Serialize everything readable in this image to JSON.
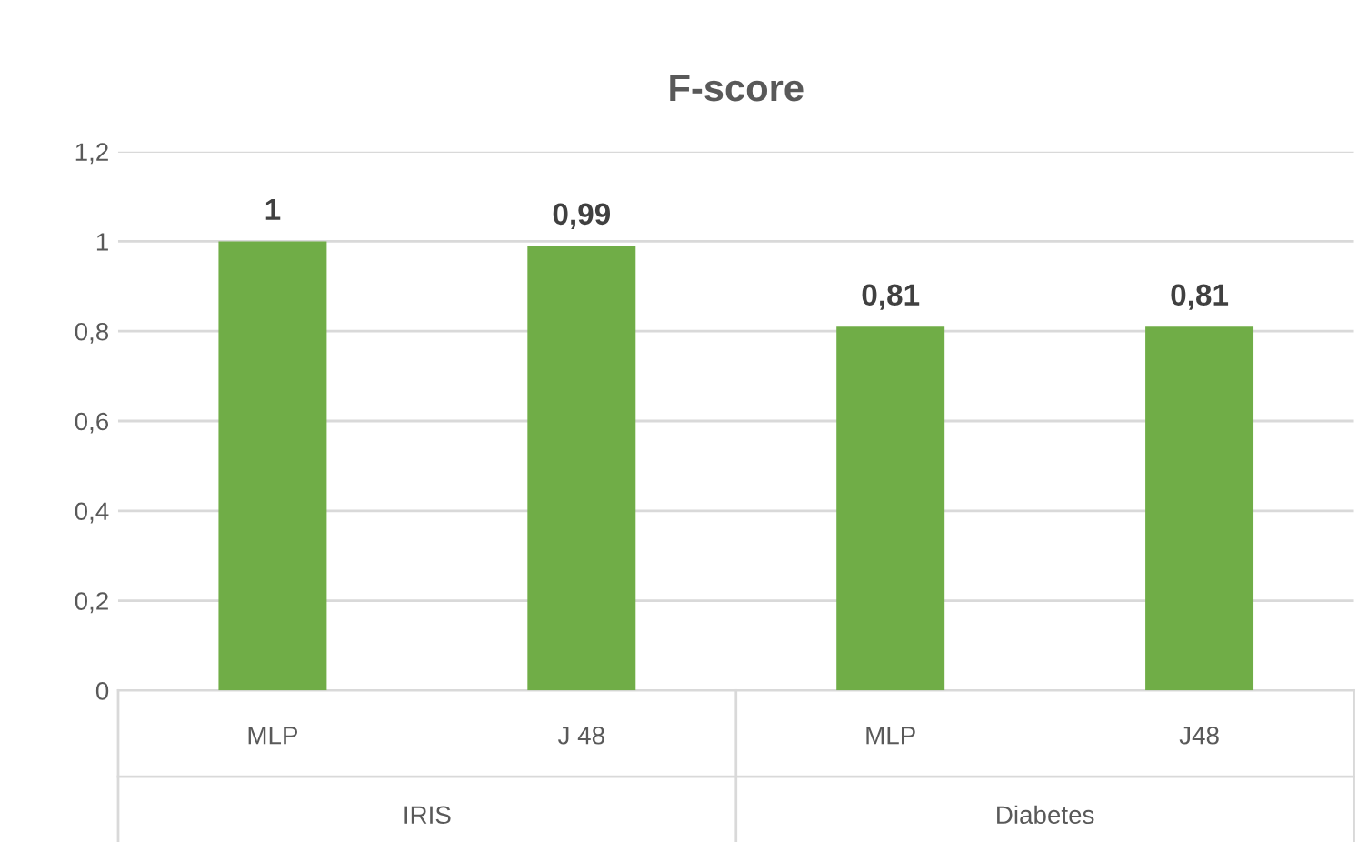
{
  "chart_data": {
    "type": "bar",
    "title": "F-score",
    "categories": [
      "MLP",
      "J 48",
      "MLP",
      "J48"
    ],
    "values": [
      1,
      0.99,
      0.81,
      0.81
    ],
    "value_labels": [
      "1",
      "0,99",
      "0,81",
      "0,81"
    ],
    "color": "#70ad47",
    "ylim": [
      0,
      1.2
    ],
    "yticks": [
      0,
      {
        "value": 0.2,
        "label": "0,2"
      },
      {
        "value": 0.4,
        "label": "0,4"
      },
      {
        "value": 0.6,
        "label": "0,6"
      },
      {
        "value": 0.8,
        "label": "0,8"
      },
      1,
      {
        "value": 1.2,
        "label": "1,2"
      }
    ],
    "grid": "y",
    "annotations": [
      "IRIS",
      "Diabetes"
    ]
  }
}
